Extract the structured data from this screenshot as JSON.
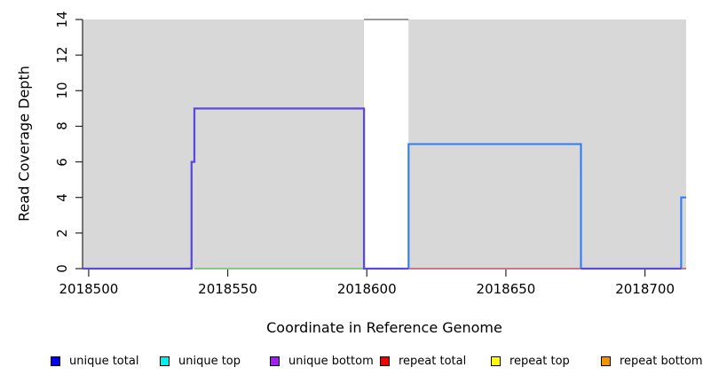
{
  "chart_data": {
    "type": "line",
    "xlabel": "Coordinate in Reference Genome",
    "ylabel": "Read Coverage Depth",
    "xlim": [
      2018497.8,
      2018714.8
    ],
    "ylim": [
      0,
      14
    ],
    "x_ticks": [
      2018500,
      2018550,
      2018600,
      2018650,
      2018700
    ],
    "y_ticks": [
      0,
      2,
      4,
      6,
      8,
      10,
      12,
      14
    ],
    "grid": false,
    "plot_background": "#ffffff",
    "axis_color": "#262626",
    "background_regions": [
      {
        "name": "shaded-region-left",
        "x0": 2018497.8,
        "x1": 2018599,
        "color": "#d8d8d8"
      },
      {
        "name": "shaded-region-right",
        "x0": 2018615,
        "x1": 2018714.8,
        "color": "#d8d8d8"
      }
    ],
    "series": [
      {
        "name": "rose-baseline-segment",
        "color": "#d05f7f",
        "width": 1.7,
        "points": [
          [
            2018615,
            0
          ],
          [
            2018714.8,
            0
          ]
        ]
      },
      {
        "name": "green-baseline-segment",
        "color": "#76c776",
        "width": 1.7,
        "points": [
          [
            2018538,
            0
          ],
          [
            2018599,
            0
          ]
        ]
      },
      {
        "name": "gray-top-segment",
        "color": "#999999",
        "width": 2.0,
        "points": [
          [
            2018599,
            14
          ],
          [
            2018615,
            14
          ]
        ]
      },
      {
        "name": "blue-step-line",
        "color": "#2f7df4",
        "width": 2.1,
        "points": [
          [
            2018615,
            0
          ],
          [
            2018615,
            7
          ],
          [
            2018677,
            7
          ],
          [
            2018677,
            0
          ]
        ]
      },
      {
        "name": "blue-right-step",
        "color": "#2f7df4",
        "width": 2.1,
        "points": [
          [
            2018713,
            0
          ],
          [
            2018713,
            4
          ],
          [
            2018714.8,
            4
          ]
        ]
      },
      {
        "name": "purple-step-line",
        "color": "#5a49e0",
        "width": 2.3,
        "points": [
          [
            2018497.8,
            0
          ],
          [
            2018537,
            0
          ],
          [
            2018537,
            6
          ],
          [
            2018538,
            6
          ],
          [
            2018538,
            9
          ],
          [
            2018599,
            9
          ],
          [
            2018599,
            0
          ],
          [
            2018615,
            0
          ]
        ]
      },
      {
        "name": "purple-baseline-right",
        "color": "#5a49e0",
        "width": 2.3,
        "points": [
          [
            2018677,
            0
          ],
          [
            2018713,
            0
          ]
        ]
      }
    ],
    "legend_position": "bottom",
    "legend": [
      {
        "label": "unique total",
        "color": "#0000EE"
      },
      {
        "label": "unique top",
        "color": "#00EEEE"
      },
      {
        "label": "unique bottom",
        "color": "#A020F0"
      },
      {
        "label": "repeat total",
        "color": "#EE0000"
      },
      {
        "label": "repeat top",
        "color": "#FFFF00"
      },
      {
        "label": "repeat bottom",
        "color": "#EE9500"
      }
    ]
  }
}
